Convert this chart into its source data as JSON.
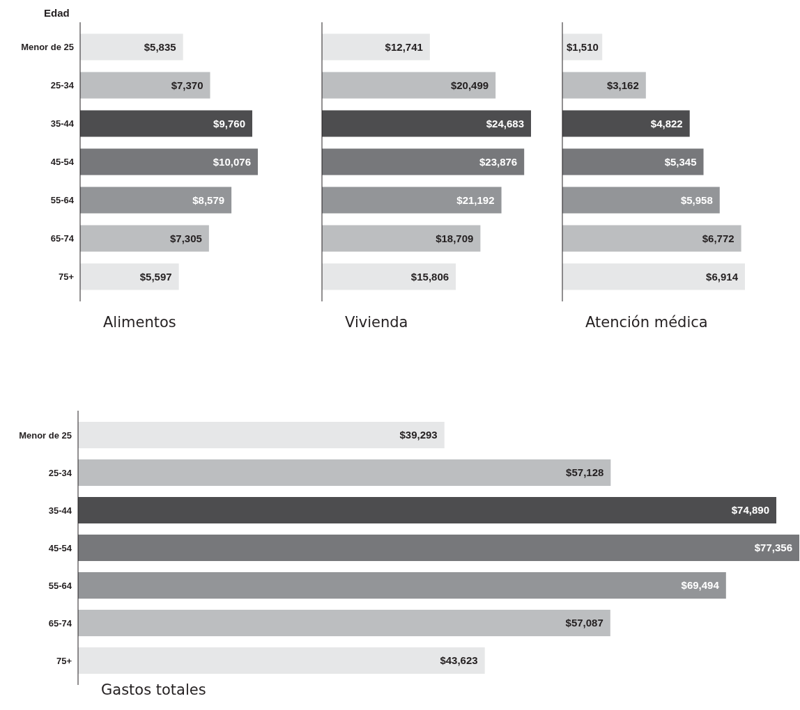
{
  "chart_data": [
    {
      "type": "bar",
      "orientation": "horizontal",
      "title": "Alimentos",
      "ylabel": "Edad",
      "tick_labels": "y",
      "categories": [
        "Menor de 25",
        "25-34",
        "35-44",
        "45-54",
        "55-64",
        "65-74",
        "75+"
      ],
      "values": [
        5835,
        7370,
        9760,
        10076,
        8579,
        7305,
        5597
      ],
      "value_labels": [
        "$5,835",
        "$7,370",
        "$9,760",
        "$10,076",
        "$8,579",
        "$7,305",
        "$5,597"
      ],
      "colors": [
        "#e6e7e8",
        "#bcbec0",
        "#4d4d4f",
        "#77787b",
        "#939598",
        "#bcbec0",
        "#e6e7e8"
      ]
    },
    {
      "type": "bar",
      "orientation": "horizontal",
      "title": "Vivienda",
      "tick_labels": false,
      "values": [
        12741,
        20499,
        24683,
        23876,
        21192,
        18709,
        15806
      ],
      "value_labels": [
        "$12,741",
        "$20,499",
        "$24,683",
        "$23,876",
        "$21,192",
        "$18,709",
        "$15,806"
      ],
      "colors": [
        "#e6e7e8",
        "#bcbec0",
        "#4d4d4f",
        "#77787b",
        "#939598",
        "#bcbec0",
        "#e6e7e8"
      ]
    },
    {
      "type": "bar",
      "orientation": "horizontal",
      "title": "Atención médica",
      "tick_labels": false,
      "values": [
        1510,
        3162,
        4822,
        5345,
        5958,
        6772,
        6914
      ],
      "value_labels": [
        "$1,510",
        "$3,162",
        "$4,822",
        "$5,345",
        "$5,958",
        "$6,772",
        "$6,914"
      ],
      "colors": [
        "#e6e7e8",
        "#bcbec0",
        "#4d4d4f",
        "#77787b",
        "#939598",
        "#bcbec0",
        "#e6e7e8"
      ]
    },
    {
      "type": "bar",
      "orientation": "horizontal",
      "title": "Gastos totales",
      "tick_labels": "y",
      "categories": [
        "Menor de 25",
        "25-34",
        "35-44",
        "45-54",
        "55-64",
        "65-74",
        "75+"
      ],
      "values": [
        39293,
        57128,
        74890,
        77356,
        69494,
        57087,
        43623
      ],
      "value_labels": [
        "$39,293",
        "$57,128",
        "$74,890",
        "$77,356",
        "$69,494",
        "$57,087",
        "$43,623"
      ],
      "colors": [
        "#e6e7e8",
        "#bcbec0",
        "#4d4d4f",
        "#77787b",
        "#939598",
        "#bcbec0",
        "#e6e7e8"
      ]
    }
  ]
}
